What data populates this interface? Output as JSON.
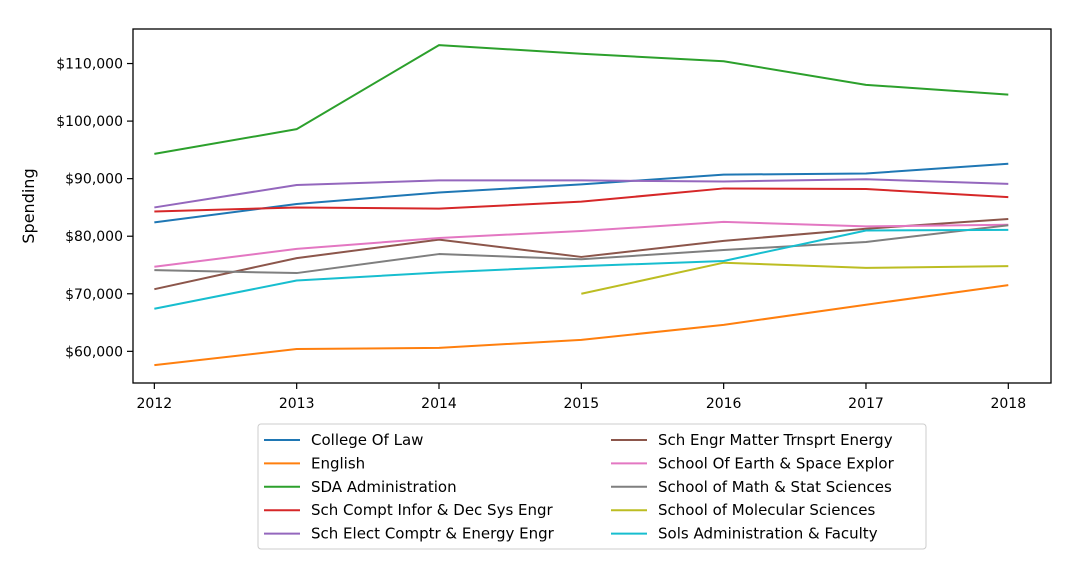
{
  "chart_data": {
    "type": "line",
    "xlabel": "",
    "ylabel": "Spending",
    "x": [
      2012,
      2013,
      2014,
      2015,
      2016,
      2017,
      2018
    ],
    "xlim": [
      2011.85,
      2018.3
    ],
    "ylim": [
      54500,
      116000
    ],
    "yticks": [
      60000,
      70000,
      80000,
      90000,
      100000,
      110000
    ],
    "ytick_labels": [
      "$60,000",
      "$70,000",
      "$80,000",
      "$90,000",
      "$100,000",
      "$110,000"
    ],
    "xtick_labels": [
      "2012",
      "2013",
      "2014",
      "2015",
      "2016",
      "2017",
      "2018"
    ],
    "legend_position": "bottom-center",
    "grid": false,
    "series": [
      {
        "name": "College Of Law",
        "color": "#1f77b4",
        "values": [
          82400,
          85600,
          87600,
          89000,
          90700,
          90900,
          92600
        ]
      },
      {
        "name": "English",
        "color": "#ff7f0e",
        "values": [
          57600,
          60400,
          60600,
          62000,
          64600,
          68100,
          71500
        ]
      },
      {
        "name": "SDA Administration",
        "color": "#2ca02c",
        "values": [
          94300,
          98600,
          113200,
          111700,
          110400,
          106300,
          104600
        ]
      },
      {
        "name": "Sch Compt Infor & Dec Sys Engr",
        "color": "#d62728",
        "values": [
          84300,
          85000,
          84800,
          86000,
          88300,
          88200,
          86800
        ]
      },
      {
        "name": "Sch Elect Comptr & Energy Engr",
        "color": "#9467bd",
        "values": [
          85000,
          88900,
          89700,
          89700,
          89500,
          89900,
          89100
        ]
      },
      {
        "name": "Sch Engr Matter Trnsprt Energy",
        "color": "#8c564b",
        "values": [
          70800,
          76200,
          79400,
          76400,
          79200,
          81300,
          83000
        ]
      },
      {
        "name": "School Of Earth & Space Explor",
        "color": "#e377c2",
        "values": [
          74700,
          77800,
          79700,
          80900,
          82500,
          81700,
          82000
        ]
      },
      {
        "name": "School of Math & Stat Sciences",
        "color": "#7f7f7f",
        "values": [
          74100,
          73600,
          76900,
          76000,
          77600,
          79000,
          81900
        ]
      },
      {
        "name": "School of Molecular Sciences",
        "color": "#bcbd22",
        "values": [
          null,
          null,
          null,
          70000,
          75400,
          74500,
          74800
        ]
      },
      {
        "name": "Sols Administration & Faculty",
        "color": "#17becf",
        "values": [
          67400,
          72300,
          73700,
          74800,
          75700,
          81000,
          81100
        ]
      }
    ]
  }
}
